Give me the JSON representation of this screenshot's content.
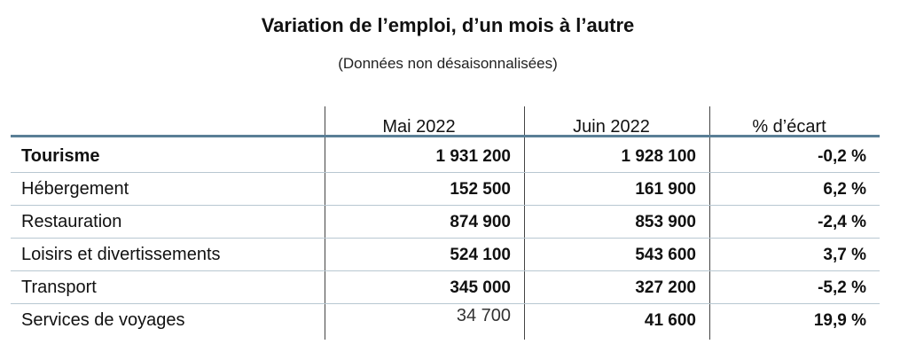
{
  "title": "Variation de l’emploi, d’un mois à l’autre",
  "subtitle": "(Données non désaisonnalisées)",
  "columns": [
    "",
    "Mai 2022",
    "Juin 2022",
    "% d’écart"
  ],
  "rows": [
    {
      "label": "Tourisme",
      "mai": "1 931 200",
      "juin": "1 928 100",
      "ecart": "-0,2 %"
    },
    {
      "label": "Hébergement",
      "mai": "152 500",
      "juin": "161 900",
      "ecart": "6,2 %"
    },
    {
      "label": "Restauration",
      "mai": "874 900",
      "juin": "853 900",
      "ecart": "-2,4 %"
    },
    {
      "label": "Loisirs et divertissements",
      "mai": "524 100",
      "juin": "543 600",
      "ecart": "3,7 %"
    },
    {
      "label": "Transport",
      "mai": "345 000",
      "juin": "327 200",
      "ecart": "-5,2 %"
    },
    {
      "label": "Services de voyages",
      "mai": "34 700",
      "juin": "41 600",
      "ecart": "19,9 %"
    }
  ]
}
